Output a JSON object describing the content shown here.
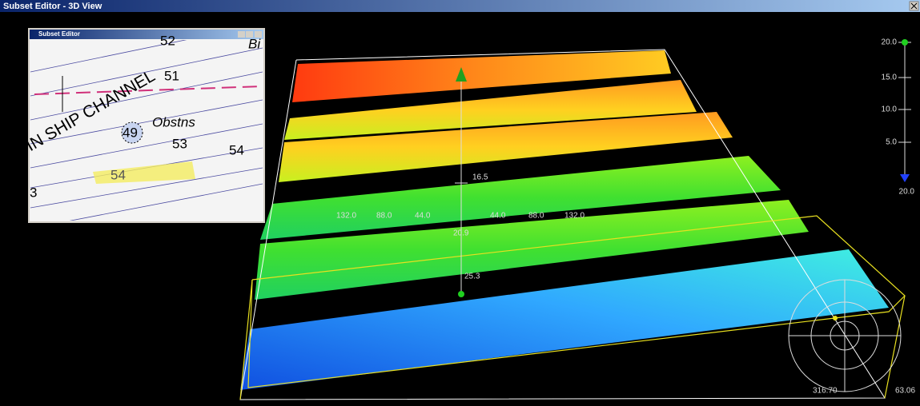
{
  "window": {
    "title": "Subset Editor - 3D View"
  },
  "inset": {
    "title": "Subset Editor",
    "chart_labels": [
      "52",
      "Bi",
      "51",
      "IN SHIP CHANNEL",
      "49",
      "Obstns",
      "53",
      "54",
      "54",
      "3"
    ]
  },
  "depth_scale": {
    "ticks": [
      "20.0",
      "15.0",
      "10.0",
      "5.0"
    ],
    "bottom_label": "20.0"
  },
  "view": {
    "center_labels": [
      "16.5",
      "20.9",
      "25.3"
    ],
    "ruler_labels": [
      "132.0",
      "88.0",
      "44.0",
      "44.0",
      "88.0",
      "132.0"
    ]
  },
  "compass": {
    "heading": "316.70",
    "pitch": "63.06"
  }
}
